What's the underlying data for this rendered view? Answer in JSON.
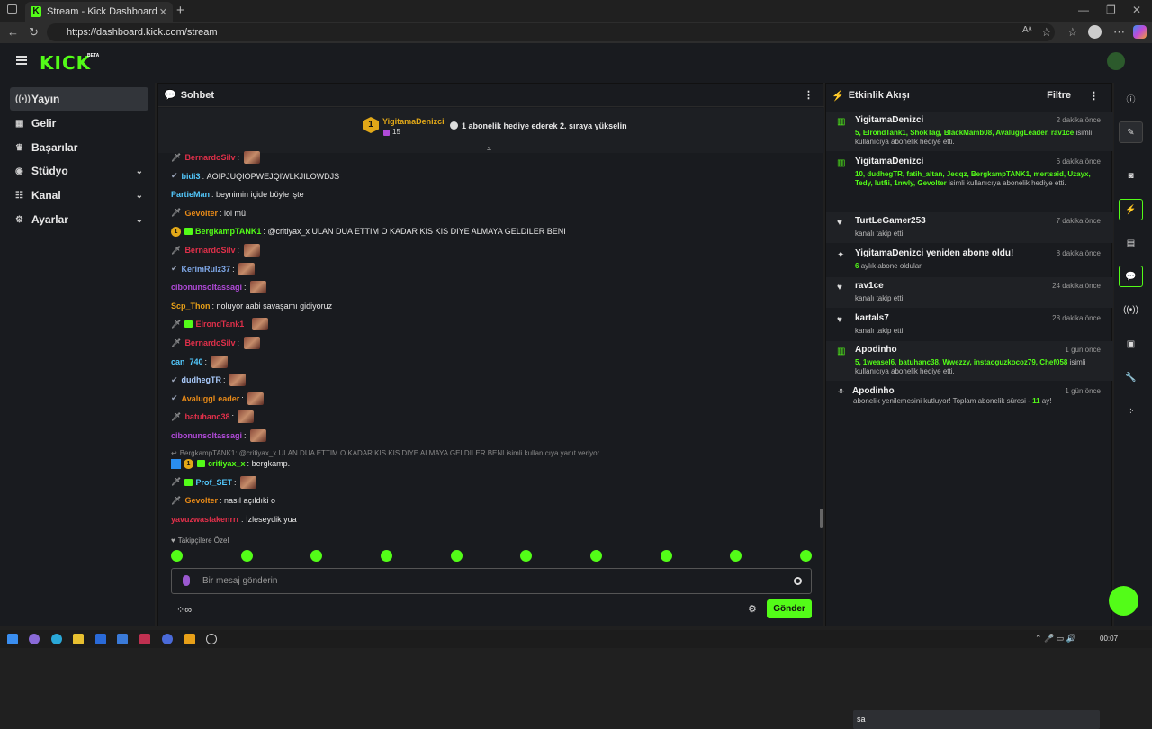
{
  "browser": {
    "tab_title": "Stream - Kick Dashboard",
    "url": "https://dashboard.kick.com/stream"
  },
  "header": {
    "logo": "KICK",
    "beta": "BETA"
  },
  "sidebar": {
    "items": [
      {
        "label": "Yayın",
        "icon": "broadcast-icon",
        "active": true
      },
      {
        "label": "Gelir",
        "icon": "revenue-icon"
      },
      {
        "label": "Başarılar",
        "icon": "trophy-icon"
      },
      {
        "label": "Stüdyo",
        "icon": "studio-icon",
        "expandable": true
      },
      {
        "label": "Kanal",
        "icon": "channel-icon",
        "expandable": true
      },
      {
        "label": "Ayarlar",
        "icon": "gear-icon",
        "expandable": true
      }
    ]
  },
  "chat": {
    "title": "Sohbet",
    "pinned": {
      "rank": "1",
      "user": "YigitamaDenizci",
      "count": "15",
      "text": "1 abonelik hediye ederek 2. sıraya yükselin"
    },
    "messages": [
      {
        "user": "BernardoSilv",
        "text": "",
        "color": "#e0304a",
        "emote": true
      },
      {
        "user": "bidi3",
        "text": "AOIPJUQIOPWEJQIWLKJILOWDJS",
        "color": "#53c8fc"
      },
      {
        "user": "PartieMan",
        "text": "beynimin içide böyle işte",
        "color": "#53c8fc"
      },
      {
        "user": "Gevolter",
        "text": "lol mü",
        "color": "#e88a18"
      },
      {
        "user": "BergkampTANK1",
        "text": "@critiyax_x ULAN DUA ETTIM O KADAR KIS KIS DIYE ALMAYA GELDILER BENI",
        "color": "#53fc18"
      },
      {
        "user": "BernardoSilv",
        "text": "",
        "color": "#e0304a",
        "emote": true
      },
      {
        "user": "KerimRulz37",
        "text": "",
        "color": "#7fa8e8",
        "emote": true
      },
      {
        "user": "cibonunsoltassagi",
        "text": "",
        "color": "#b04ad8",
        "emote": true
      },
      {
        "user": "Scp_Thon",
        "text": "noluyor aabi savaşamı gidiyoruz",
        "color": "#e8a018"
      },
      {
        "user": "ElrondTank1",
        "text": "",
        "color": "#e0304a",
        "emote": true
      },
      {
        "user": "BernardoSilv",
        "text": "",
        "color": "#e0304a",
        "emote": true
      },
      {
        "user": "can_740",
        "text": "",
        "color": "#53c8fc",
        "emote": true
      },
      {
        "user": "dudhegTR",
        "text": "",
        "color": "#a8c8f8",
        "emote": true
      },
      {
        "user": "AvaluggLeader",
        "text": "",
        "color": "#e88a18",
        "emote": true
      },
      {
        "user": "batuhanc38",
        "text": "",
        "color": "#e0304a",
        "emote": true
      },
      {
        "user": "cibonunsoltassagi",
        "text": "",
        "color": "#b04ad8",
        "emote": true
      }
    ],
    "reply_context": "BergkampTANK1: @critiyax_x ULAN DUA ETTIM O KADAR KIS KIS DIYE ALMAYA GELDILER BENI isimli kullanıcıya yanıt veriyor",
    "messages2": [
      {
        "user": "critiyax_x",
        "text": "bergkamp.",
        "color": "#53fc18"
      },
      {
        "user": "Prof_SET",
        "text": "",
        "color": "#53c8fc",
        "emote": true
      },
      {
        "user": "Gevolter",
        "text": "nasıl açıldıki o",
        "color": "#e88a18"
      },
      {
        "user": "yavuzwastakenrrr",
        "text": "İzleseydik yua",
        "color": "#e0304a"
      }
    ],
    "followers_only": "Takipçilere Özel",
    "input_placeholder": "Bir mesaj gönderin",
    "send_label": "Gönder"
  },
  "feed": {
    "title": "Etkinlik Akışı",
    "filter_label": "Filtre",
    "items": [
      {
        "title": "YigitamaDenizci",
        "time": "2 dakika önce",
        "icon": "gift-icon",
        "green": "5, ElrondTank1, ShokTag, BlackMamb08, AvaluggLeader, rav1ce",
        "sub": "isimli kullanıcıya abonelik hediye etti."
      },
      {
        "title": "YigitamaDenizci",
        "time": "6 dakika önce",
        "icon": "gift-icon",
        "green": "10, dudhegTR, fatih_altan, Jeqqz, BergkampTANK1, mertsaid, Uzayx, Tedy, lutfii, 1nwly, Gevolter",
        "sub": "isimli kullanıcıya abonelik hediye etti."
      },
      {
        "title": "TurtLeGamer253",
        "time": "7 dakika önce",
        "icon": "heart-icon",
        "sub": "kanalı takip etti"
      },
      {
        "title": "YigitamaDenizci yeniden abone oldu!",
        "time": "8 dakika önce",
        "icon": "star-icon",
        "green": "6",
        "sub": "aylık abone oldular"
      },
      {
        "title": "rav1ce",
        "time": "24 dakika önce",
        "icon": "heart-icon",
        "sub": "kanalı takip etti"
      },
      {
        "title": "kartals7",
        "time": "28 dakika önce",
        "icon": "heart-icon",
        "sub": "kanalı takip etti"
      },
      {
        "title": "Apodinho",
        "time": "1 gün önce",
        "icon": "gift-icon",
        "green": "5, 1weasel6, batuhanc38, Wwezzy, instaoguzkocoz79, Chef058",
        "sub": "isimli kullanıcıya abonelik hediye etti."
      },
      {
        "title": "Apodinho",
        "time": "1 gün önce",
        "icon": "resub-icon",
        "sub": "abonelik yenilemesini kutluyor! Toplam abonelik süresi -",
        "green": "11",
        "sub2": "ay!",
        "reply": "sa"
      }
    ]
  },
  "taskbar": {
    "time": "00:07"
  }
}
